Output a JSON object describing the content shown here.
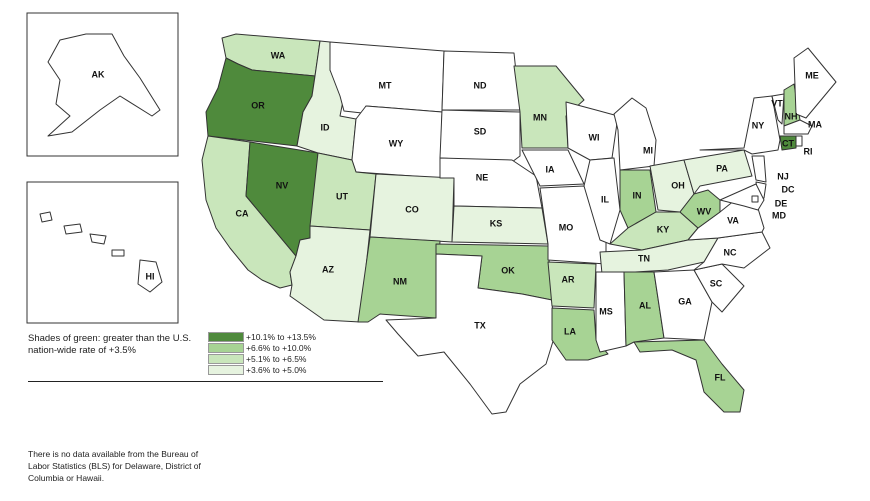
{
  "colors": {
    "tier1": "#4f8a3c",
    "tier2": "#a7d394",
    "tier3": "#c9e6bb",
    "tier4": "#e6f3df",
    "none": "#ffffff"
  },
  "legend": {
    "title": "Shades of green: greater than the U.S. nation-wide rate of +3.5%",
    "items": [
      {
        "label": "+10.1% to +13.5%",
        "tier": "tier1"
      },
      {
        "label": "+6.6% to +10.0%",
        "tier": "tier2"
      },
      {
        "label": "+5.1% to +6.5%",
        "tier": "tier3"
      },
      {
        "label": "+3.6% to +5.0%",
        "tier": "tier4"
      }
    ]
  },
  "footnote": "There is no data available from the Bureau of Labor Statistics (BLS) for Delaware, District of Columbia or Hawaii.",
  "states": [
    {
      "abbr": "WA",
      "tier": "tier3"
    },
    {
      "abbr": "OR",
      "tier": "tier1"
    },
    {
      "abbr": "CA",
      "tier": "tier3"
    },
    {
      "abbr": "NV",
      "tier": "tier1"
    },
    {
      "abbr": "ID",
      "tier": "tier4"
    },
    {
      "abbr": "MT",
      "tier": "none"
    },
    {
      "abbr": "WY",
      "tier": "none"
    },
    {
      "abbr": "UT",
      "tier": "tier3"
    },
    {
      "abbr": "AZ",
      "tier": "tier4"
    },
    {
      "abbr": "CO",
      "tier": "tier4"
    },
    {
      "abbr": "NM",
      "tier": "tier2"
    },
    {
      "abbr": "ND",
      "tier": "none"
    },
    {
      "abbr": "SD",
      "tier": "none"
    },
    {
      "abbr": "NE",
      "tier": "none"
    },
    {
      "abbr": "KS",
      "tier": "tier4"
    },
    {
      "abbr": "OK",
      "tier": "tier2"
    },
    {
      "abbr": "TX",
      "tier": "none"
    },
    {
      "abbr": "MN",
      "tier": "tier3"
    },
    {
      "abbr": "IA",
      "tier": "none"
    },
    {
      "abbr": "MO",
      "tier": "none"
    },
    {
      "abbr": "AR",
      "tier": "tier3"
    },
    {
      "abbr": "LA",
      "tier": "tier2"
    },
    {
      "abbr": "WI",
      "tier": "none"
    },
    {
      "abbr": "IL",
      "tier": "none"
    },
    {
      "abbr": "MI",
      "tier": "none"
    },
    {
      "abbr": "IN",
      "tier": "tier2"
    },
    {
      "abbr": "OH",
      "tier": "tier4"
    },
    {
      "abbr": "KY",
      "tier": "tier3"
    },
    {
      "abbr": "TN",
      "tier": "tier4"
    },
    {
      "abbr": "MS",
      "tier": "none"
    },
    {
      "abbr": "AL",
      "tier": "tier2"
    },
    {
      "abbr": "GA",
      "tier": "none"
    },
    {
      "abbr": "FL",
      "tier": "tier2"
    },
    {
      "abbr": "SC",
      "tier": "none"
    },
    {
      "abbr": "NC",
      "tier": "none"
    },
    {
      "abbr": "VA",
      "tier": "none"
    },
    {
      "abbr": "WV",
      "tier": "tier2"
    },
    {
      "abbr": "PA",
      "tier": "tier4"
    },
    {
      "abbr": "NY",
      "tier": "none"
    },
    {
      "abbr": "VT",
      "tier": "none"
    },
    {
      "abbr": "NH",
      "tier": "tier2"
    },
    {
      "abbr": "ME",
      "tier": "none"
    },
    {
      "abbr": "MA",
      "tier": "none"
    },
    {
      "abbr": "RI",
      "tier": "none"
    },
    {
      "abbr": "CT",
      "tier": "tier1"
    },
    {
      "abbr": "NJ",
      "tier": "none"
    },
    {
      "abbr": "DE",
      "tier": "none"
    },
    {
      "abbr": "MD",
      "tier": "none"
    },
    {
      "abbr": "DC",
      "tier": "none"
    },
    {
      "abbr": "AK",
      "tier": "none"
    },
    {
      "abbr": "HI",
      "tier": "none"
    }
  ]
}
